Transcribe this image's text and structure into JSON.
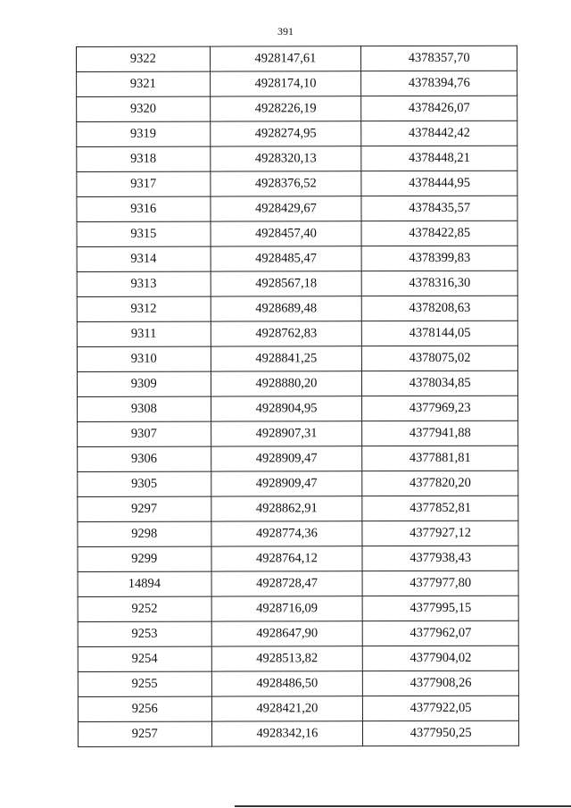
{
  "page_number": "391",
  "rows": [
    [
      "9322",
      "4928147,61",
      "4378357,70"
    ],
    [
      "9321",
      "4928174,10",
      "4378394,76"
    ],
    [
      "9320",
      "4928226,19",
      "4378426,07"
    ],
    [
      "9319",
      "4928274,95",
      "4378442,42"
    ],
    [
      "9318",
      "4928320,13",
      "4378448,21"
    ],
    [
      "9317",
      "4928376,52",
      "4378444,95"
    ],
    [
      "9316",
      "4928429,67",
      "4378435,57"
    ],
    [
      "9315",
      "4928457,40",
      "4378422,85"
    ],
    [
      "9314",
      "4928485,47",
      "4378399,83"
    ],
    [
      "9313",
      "4928567,18",
      "4378316,30"
    ],
    [
      "9312",
      "4928689,48",
      "4378208,63"
    ],
    [
      "9311",
      "4928762,83",
      "4378144,05"
    ],
    [
      "9310",
      "4928841,25",
      "4378075,02"
    ],
    [
      "9309",
      "4928880,20",
      "4378034,85"
    ],
    [
      "9308",
      "4928904,95",
      "4377969,23"
    ],
    [
      "9307",
      "4928907,31",
      "4377941,88"
    ],
    [
      "9306",
      "4928909,47",
      "4377881,81"
    ],
    [
      "9305",
      "4928909,47",
      "4377820,20"
    ],
    [
      "9297",
      "4928862,91",
      "4377852,81"
    ],
    [
      "9298",
      "4928774,36",
      "4377927,12"
    ],
    [
      "9299",
      "4928764,12",
      "4377938,43"
    ],
    [
      "14894",
      "4928728,47",
      "4377977,80"
    ],
    [
      "9252",
      "4928716,09",
      "4377995,15"
    ],
    [
      "9253",
      "4928647,90",
      "4377962,07"
    ],
    [
      "9254",
      "4928513,82",
      "4377904,02"
    ],
    [
      "9255",
      "4928486,50",
      "4377908,26"
    ],
    [
      "9256",
      "4928421,20",
      "4377922,05"
    ],
    [
      "9257",
      "4928342,16",
      "4377950,25"
    ]
  ]
}
